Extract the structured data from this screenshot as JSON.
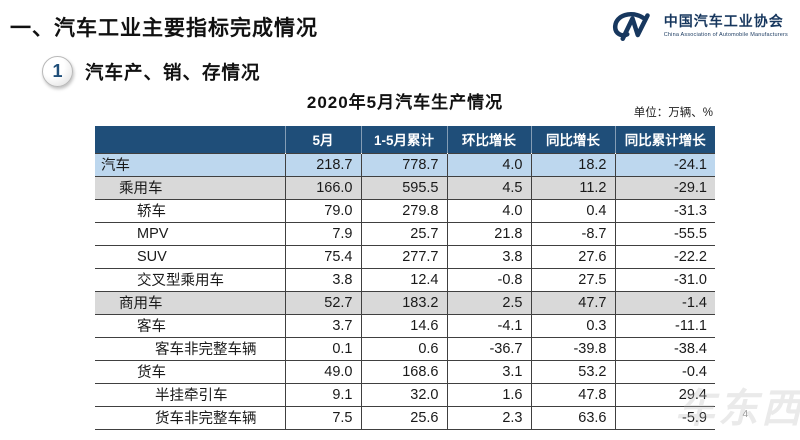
{
  "page": {
    "title": "一、汽车工业主要指标完成情况",
    "page_number": "4",
    "watermark": "车东西"
  },
  "logo": {
    "name_cn": "中国汽车工业协会",
    "name_en": "China Association of Automobile Manufacturers"
  },
  "section": {
    "number": "1",
    "title": "汽车产、销、存情况"
  },
  "table": {
    "title": "2020年5月汽车生产情况",
    "unit_label": "单位：万辆、%",
    "columns": [
      "",
      "5月",
      "1-5月累计",
      "环比增长",
      "同比增长",
      "同比累计增长"
    ],
    "rows": [
      {
        "label": "汽车",
        "indent": 0,
        "style": "blue",
        "values": [
          "218.7",
          "778.7",
          "4.0",
          "18.2",
          "-24.1"
        ]
      },
      {
        "label": "乘用车",
        "indent": 1,
        "style": "gray",
        "values": [
          "166.0",
          "595.5",
          "4.5",
          "11.2",
          "-29.1"
        ]
      },
      {
        "label": "轿车",
        "indent": 2,
        "style": "white",
        "values": [
          "79.0",
          "279.8",
          "4.0",
          "0.4",
          "-31.3"
        ]
      },
      {
        "label": "MPV",
        "indent": 2,
        "style": "white",
        "values": [
          "7.9",
          "25.7",
          "21.8",
          "-8.7",
          "-55.5"
        ]
      },
      {
        "label": "SUV",
        "indent": 2,
        "style": "white",
        "values": [
          "75.4",
          "277.7",
          "3.8",
          "27.6",
          "-22.2"
        ]
      },
      {
        "label": "交叉型乘用车",
        "indent": 2,
        "style": "white",
        "values": [
          "3.8",
          "12.4",
          "-0.8",
          "27.5",
          "-31.0"
        ]
      },
      {
        "label": "商用车",
        "indent": 1,
        "style": "gray",
        "values": [
          "52.7",
          "183.2",
          "2.5",
          "47.7",
          "-1.4"
        ]
      },
      {
        "label": "客车",
        "indent": 2,
        "style": "white",
        "values": [
          "3.7",
          "14.6",
          "-4.1",
          "0.3",
          "-11.1"
        ]
      },
      {
        "label": "客车非完整车辆",
        "indent": 3,
        "style": "white",
        "values": [
          "0.1",
          "0.6",
          "-36.7",
          "-39.8",
          "-38.4"
        ]
      },
      {
        "label": "货车",
        "indent": 2,
        "style": "white",
        "values": [
          "49.0",
          "168.6",
          "3.1",
          "53.2",
          "-0.4"
        ]
      },
      {
        "label": "半挂牵引车",
        "indent": 3,
        "style": "white",
        "values": [
          "9.1",
          "32.0",
          "1.6",
          "47.8",
          "29.4"
        ]
      },
      {
        "label": "货车非完整车辆",
        "indent": 3,
        "style": "white",
        "values": [
          "7.5",
          "25.6",
          "2.3",
          "63.6",
          "-5.9"
        ]
      }
    ]
  },
  "colors": {
    "header_bg": "#1F4E79",
    "row_blue": "#BDD7EE",
    "row_gray": "#D9D9D9",
    "logo_blue": "#17375E"
  }
}
